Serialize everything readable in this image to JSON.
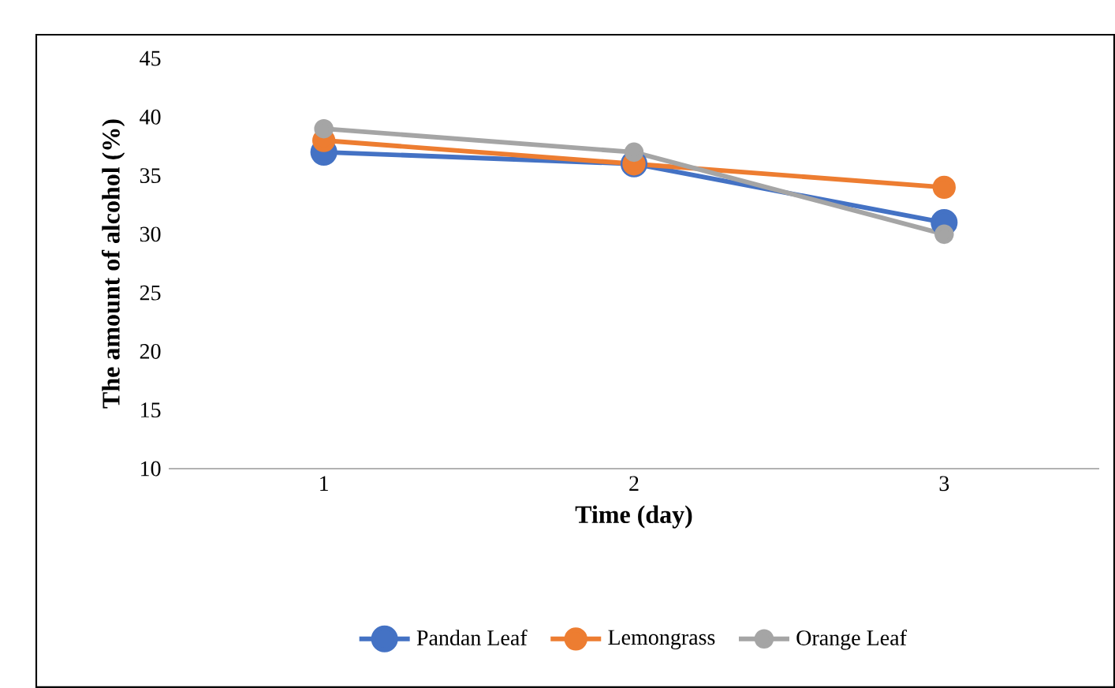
{
  "chart_data": {
    "type": "line",
    "xlabel": "Time (day)",
    "ylabel": "The amount of alcohol (%)",
    "categories": [
      "1",
      "2",
      "3"
    ],
    "series": [
      {
        "name": "Pandan Leaf",
        "color": "#4472c4",
        "values": [
          37,
          36,
          31
        ]
      },
      {
        "name": "Lemongrass",
        "color": "#ed7d31",
        "values": [
          38,
          36,
          34
        ]
      },
      {
        "name": "Orange Leaf",
        "color": "#a5a5a5",
        "values": [
          39,
          37,
          30
        ]
      }
    ],
    "ylim": [
      10,
      45
    ],
    "yticks": [
      10,
      15,
      20,
      25,
      30,
      35,
      40,
      45
    ],
    "legend": "bottom",
    "marker": "circle",
    "line_style": "solid",
    "grid": false
  }
}
